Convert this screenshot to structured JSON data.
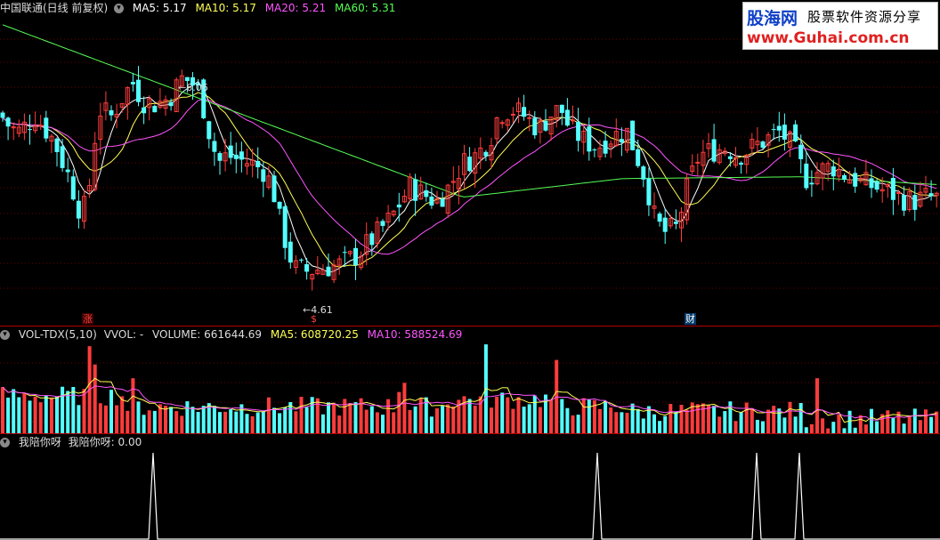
{
  "main_panel": {
    "title": "中国联通(日线 前复权)",
    "indicators": [
      {
        "label": "MA5: 5.17",
        "color": "#ffffff"
      },
      {
        "label": "MA10: 5.17",
        "color": "#ffff55"
      },
      {
        "label": "MA20: 5.21",
        "color": "#ff55ff"
      },
      {
        "label": "MA60: 5.31",
        "color": "#55ff55"
      }
    ],
    "high_label": "6.06",
    "low_label": "4.61",
    "markers": [
      {
        "text": "涨",
        "color": "#ff4040"
      },
      {
        "text": "$",
        "color": "#ff4040"
      },
      {
        "text": "财",
        "color": "#ffffff"
      }
    ]
  },
  "volume_panel": {
    "title": "VOL-TDX(5,10)",
    "indicators": [
      {
        "label": "VVOL: -",
        "color": "#dddddd"
      },
      {
        "label": "VOLUME: 661644.69",
        "color": "#dddddd"
      },
      {
        "label": "MA5: 608720.25",
        "color": "#ffff55"
      },
      {
        "label": "MA10: 588524.69",
        "color": "#ff55ff"
      }
    ]
  },
  "custom_panel": {
    "title": "我陪你呀",
    "indicators": [
      {
        "label": "我陪你呀: 0.00",
        "color": "#dddddd"
      }
    ]
  },
  "watermark": {
    "name": "股海网",
    "slogan": "股票软件资源分享",
    "url": "www.Guhai.com.cn"
  },
  "colors": {
    "up": "#ff3c3c",
    "down": "#54ffff",
    "ma5": "#ffffff",
    "ma10": "#ffff55",
    "ma20": "#ff55ff",
    "ma60": "#55ff55",
    "panel_border": "#b00000"
  }
}
